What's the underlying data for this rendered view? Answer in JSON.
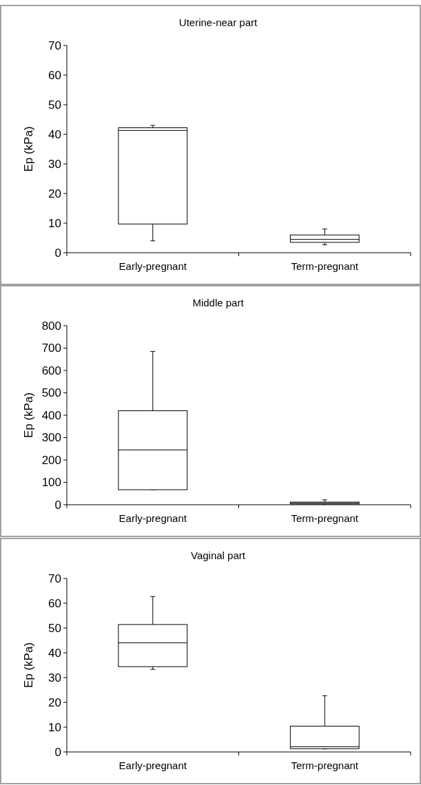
{
  "chart_data": [
    {
      "type": "box",
      "title": "Uterine-near part",
      "ylabel": "Ep (kPa)",
      "categories": [
        "Early-pregnant",
        "Term-pregnant"
      ],
      "ylim": [
        0,
        70
      ],
      "yticks": [
        0,
        10,
        20,
        30,
        40,
        50,
        60,
        70
      ],
      "grid": false,
      "boxes": [
        {
          "low": 4,
          "q1": 9.7,
          "median": 41.3,
          "q3": 42.2,
          "high": 43
        },
        {
          "low": 2.7,
          "q1": 3.5,
          "median": 4.5,
          "q3": 6,
          "high": 8
        }
      ]
    },
    {
      "type": "box",
      "title": "Middle part",
      "ylabel": "Ep (kPa)",
      "categories": [
        "Early-pregnant",
        "Term-pregnant"
      ],
      "ylim": [
        0,
        800
      ],
      "yticks": [
        0,
        100,
        200,
        300,
        400,
        500,
        600,
        700,
        800
      ],
      "grid": false,
      "boxes": [
        {
          "low": 67,
          "q1": 67,
          "median": 245,
          "q3": 420,
          "high": 685
        },
        {
          "low": 3,
          "q1": 3,
          "median": 7,
          "q3": 12,
          "high": 22
        }
      ]
    },
    {
      "type": "box",
      "title": "Vaginal part",
      "ylabel": "Ep (kPa)",
      "categories": [
        "Early-pregnant",
        "Term-pregnant"
      ],
      "ylim": [
        0,
        70
      ],
      "yticks": [
        0,
        10,
        20,
        30,
        40,
        50,
        60,
        70
      ],
      "grid": false,
      "boxes": [
        {
          "low": 33.3,
          "q1": 34.4,
          "median": 44,
          "q3": 51.4,
          "high": 62.7
        },
        {
          "low": 1.2,
          "q1": 1.3,
          "median": 2.1,
          "q3": 10.4,
          "high": 22.7
        }
      ]
    }
  ]
}
